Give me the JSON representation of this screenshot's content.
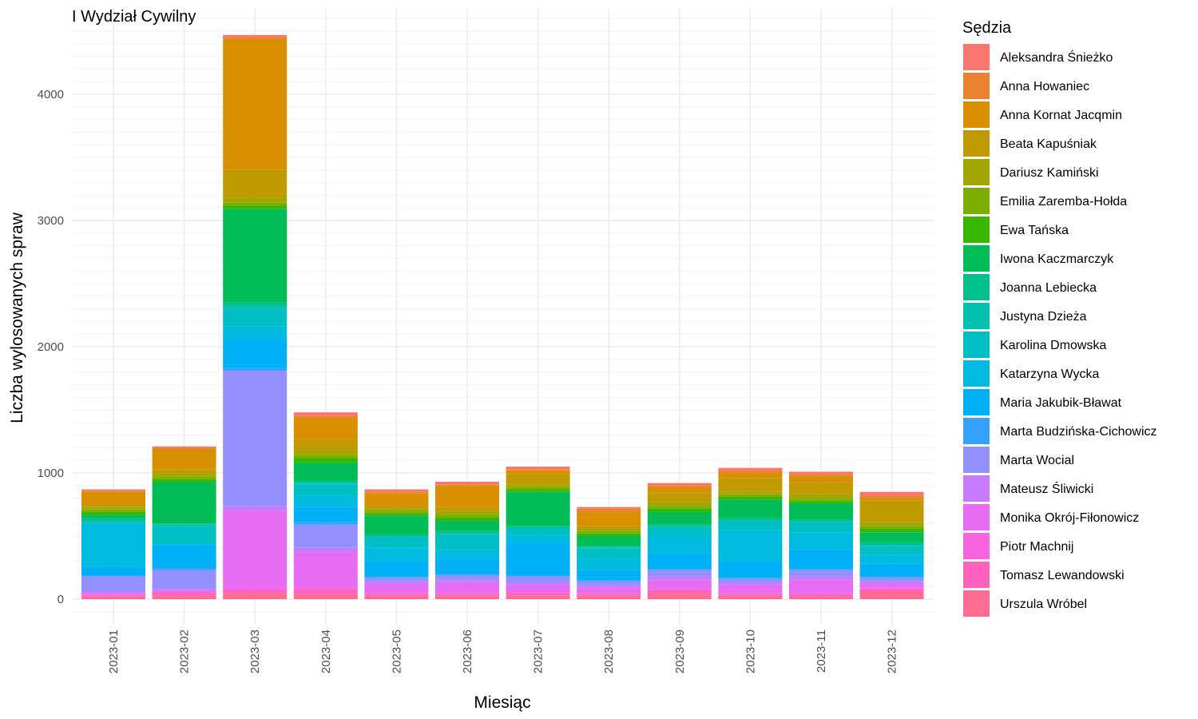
{
  "chart_data": {
    "type": "bar",
    "stacked": true,
    "title": "I Wydział Cywilny",
    "xlabel": "Miesiąc",
    "ylabel": "Liczba wylosowanych spraw",
    "ylim": [
      -170,
      4500
    ],
    "yticks": [
      0,
      1000,
      2000,
      3000,
      4000
    ],
    "grid": true,
    "legend_title": "Sędzia",
    "legend_position": "right",
    "categories": [
      "2023-01",
      "2023-02",
      "2023-03",
      "2023-04",
      "2023-05",
      "2023-06",
      "2023-07",
      "2023-08",
      "2023-09",
      "2023-10",
      "2023-11",
      "2023-12"
    ],
    "series": [
      {
        "name": "Urszula Wróbel",
        "color": "#FF6C91",
        "values": [
          20,
          30,
          50,
          40,
          30,
          30,
          30,
          30,
          50,
          30,
          20,
          60
        ]
      },
      {
        "name": "Tomasz Lewandowski",
        "color": "#FF62BC",
        "values": [
          10,
          20,
          20,
          40,
          10,
          10,
          20,
          10,
          20,
          10,
          20,
          20
        ]
      },
      {
        "name": "Piotr Machnij",
        "color": "#F763E0",
        "values": [
          10,
          10,
          20,
          10,
          10,
          10,
          10,
          10,
          10,
          10,
          10,
          10
        ]
      },
      {
        "name": "Monika Okrój-Fiłonowicz",
        "color": "#E76BF3",
        "values": [
          10,
          10,
          610,
          280,
          70,
          80,
          50,
          40,
          70,
          60,
          100,
          30
        ]
      },
      {
        "name": "Mateusz Śliwicki",
        "color": "#C77CFF",
        "values": [
          10,
          10,
          40,
          40,
          20,
          20,
          20,
          20,
          30,
          20,
          30,
          20
        ]
      },
      {
        "name": "Marta Wocial",
        "color": "#9590FF",
        "values": [
          120,
          150,
          1070,
          180,
          30,
          40,
          50,
          30,
          50,
          30,
          50,
          30
        ]
      },
      {
        "name": "Marta Budzińska-Cichowicz",
        "color": "#35A2FF",
        "values": [
          10,
          20,
          20,
          20,
          10,
          10,
          10,
          10,
          10,
          10,
          10,
          10
        ]
      },
      {
        "name": "Maria Jakubik-Bławat",
        "color": "#00B0F6",
        "values": [
          70,
          180,
          230,
          120,
          120,
          120,
          250,
          80,
          120,
          130,
          150,
          100
        ]
      },
      {
        "name": "Katarzyna Wycka",
        "color": "#00BAE0",
        "values": [
          340,
          10,
          100,
          90,
          110,
          70,
          70,
          90,
          140,
          250,
          140,
          70
        ]
      },
      {
        "name": "Karolina Dmowska",
        "color": "#00BFC4",
        "values": [
          10,
          140,
          140,
          90,
          80,
          120,
          50,
          80,
          70,
          70,
          80,
          70
        ]
      },
      {
        "name": "Justyna Dzieża",
        "color": "#00C0B0",
        "values": [
          10,
          10,
          20,
          10,
          10,
          10,
          10,
          10,
          10,
          10,
          10,
          10
        ]
      },
      {
        "name": "Joanna Lebiecka",
        "color": "#00C08B",
        "values": [
          20,
          10,
          30,
          20,
          10,
          20,
          10,
          10,
          10,
          10,
          10,
          20
        ]
      },
      {
        "name": "Iwona Kaczmarczyk",
        "color": "#00BC56",
        "values": [
          30,
          330,
          740,
          140,
          150,
          80,
          270,
          80,
          100,
          150,
          130,
          80
        ]
      },
      {
        "name": "Ewa Tańska",
        "color": "#39B600",
        "values": [
          20,
          20,
          30,
          40,
          20,
          30,
          20,
          20,
          30,
          20,
          20,
          30
        ]
      },
      {
        "name": "Emilia Zaremba-Hołda",
        "color": "#7CAE00",
        "values": [
          20,
          20,
          20,
          20,
          20,
          20,
          20,
          20,
          20,
          20,
          20,
          20
        ]
      },
      {
        "name": "Dariusz Kamiński",
        "color": "#A3A500",
        "values": [
          20,
          20,
          40,
          40,
          20,
          30,
          20,
          20,
          30,
          20,
          30,
          30
        ]
      },
      {
        "name": "Beata Kapuśniak",
        "color": "#C09B00",
        "values": [
          20,
          40,
          220,
          80,
          20,
          30,
          80,
          20,
          70,
          110,
          90,
          170
        ]
      },
      {
        "name": "Anna Kornat Jacqmin",
        "color": "#D89000",
        "values": [
          100,
          160,
          1040,
          180,
          100,
          170,
          30,
          110,
          50,
          40,
          60,
          20
        ]
      },
      {
        "name": "Anna Howaniec",
        "color": "#EA8331",
        "values": [
          10,
          10,
          10,
          10,
          10,
          10,
          10,
          30,
          10,
          20,
          10,
          20
        ]
      },
      {
        "name": "Aleksandra Śnieżko",
        "color": "#F8766D",
        "values": [
          10,
          10,
          20,
          30,
          20,
          20,
          20,
          10,
          20,
          20,
          20,
          30
        ]
      }
    ]
  }
}
